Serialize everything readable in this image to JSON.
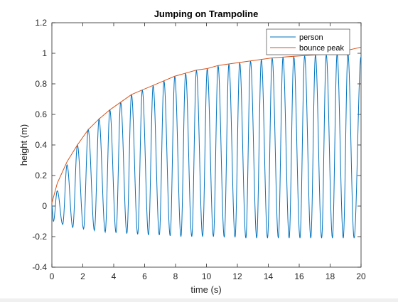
{
  "chart_data": {
    "type": "line",
    "title": "Jumping on Trampoline",
    "xlabel": "time (s)",
    "ylabel": "height (m)",
    "xlim": [
      0,
      20
    ],
    "ylim": [
      -0.4,
      1.2
    ],
    "x_ticks": [
      "0",
      "2",
      "4",
      "6",
      "8",
      "10",
      "12",
      "14",
      "16",
      "18",
      "20"
    ],
    "y_ticks": [
      "-0.4",
      "-0.2",
      "0",
      "0.2",
      "0.4",
      "0.6",
      "0.8",
      "1",
      "1.2"
    ],
    "grid": false,
    "legend_position": "top-right",
    "series": [
      {
        "name": "person",
        "color": "#0072BD",
        "kind": "oscillation",
        "period": 0.7,
        "start": [
          0,
          0
        ],
        "end": [
          20,
          0.98
        ],
        "peak_times": [
          0.35,
          0.98,
          1.65,
          2.35,
          3.05,
          3.75,
          4.45,
          5.15,
          5.85,
          6.55,
          7.25,
          7.95,
          8.65,
          9.35,
          10.05,
          10.75,
          11.45,
          12.15,
          12.85,
          13.55,
          14.25,
          14.95,
          15.65,
          16.35,
          17.05,
          17.75,
          18.45,
          19.15
        ],
        "peak_values": [
          0.1,
          0.27,
          0.4,
          0.5,
          0.57,
          0.63,
          0.68,
          0.73,
          0.76,
          0.79,
          0.82,
          0.85,
          0.87,
          0.89,
          0.9,
          0.92,
          0.93,
          0.94,
          0.95,
          0.96,
          0.97,
          0.975,
          0.98,
          0.985,
          0.99,
          0.99,
          0.995,
          1.0
        ],
        "trough_times": [
          0,
          0.1,
          0.7,
          1.35,
          2.05,
          2.75,
          3.45,
          4.15,
          4.85,
          5.55,
          6.25,
          6.95,
          7.65,
          8.35,
          9.05,
          9.75,
          10.45,
          11.15,
          11.85,
          12.55,
          13.25,
          13.95,
          14.65,
          15.35,
          16.05,
          16.75,
          17.45,
          18.15,
          18.85,
          19.55
        ],
        "trough_values": [
          0,
          -0.1,
          -0.12,
          -0.14,
          -0.15,
          -0.16,
          -0.17,
          -0.175,
          -0.18,
          -0.185,
          -0.19,
          -0.19,
          -0.195,
          -0.2,
          -0.2,
          -0.2,
          -0.2,
          -0.205,
          -0.205,
          -0.21,
          -0.21,
          -0.21,
          -0.21,
          -0.21,
          -0.21,
          -0.21,
          -0.21,
          -0.21,
          -0.21,
          -0.21
        ]
      },
      {
        "name": "bounce peak",
        "color": "#D95319",
        "kind": "line",
        "x": [
          0,
          0.35,
          0.98,
          1.65,
          2.35,
          3.05,
          3.75,
          4.45,
          5.15,
          5.85,
          6.55,
          7.25,
          7.95,
          8.65,
          9.35,
          10.05,
          10.75,
          11.45,
          12.15,
          12.85,
          13.55,
          14.25,
          14.95,
          15.65,
          16.35,
          17.05,
          17.75,
          18.45,
          19.15,
          20
        ],
        "y": [
          0.02,
          0.15,
          0.29,
          0.4,
          0.5,
          0.57,
          0.63,
          0.68,
          0.73,
          0.76,
          0.79,
          0.82,
          0.85,
          0.87,
          0.89,
          0.9,
          0.92,
          0.93,
          0.94,
          0.95,
          0.96,
          0.97,
          0.975,
          0.98,
          0.985,
          0.99,
          0.995,
          1.0,
          1.02,
          1.04
        ]
      }
    ]
  }
}
